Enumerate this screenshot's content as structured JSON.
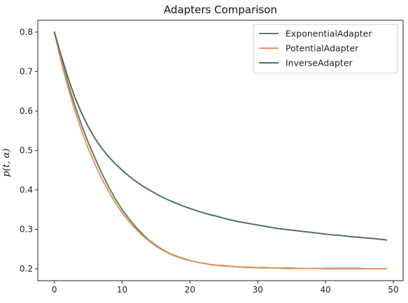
{
  "chart_data": {
    "type": "line",
    "title": "Adapters Comparison",
    "xlabel": "",
    "ylabel": "p(t, α)",
    "xlim": [
      -2.45,
      51.45
    ],
    "ylim": [
      0.17,
      0.83
    ],
    "xticks": [
      0,
      10,
      20,
      30,
      40,
      50
    ],
    "yticks": [
      0.2,
      0.3,
      0.4,
      0.5,
      0.6,
      0.7,
      0.8
    ],
    "ytick_labels": [
      "0.2",
      "0.3",
      "0.4",
      "0.5",
      "0.6",
      "0.7",
      "0.8"
    ],
    "grid": false,
    "legend_position": "top-right",
    "x": [
      0,
      1,
      2,
      3,
      4,
      5,
      6,
      7,
      8,
      9,
      10,
      11,
      12,
      13,
      14,
      15,
      16,
      17,
      18,
      19,
      20,
      21,
      22,
      23,
      24,
      25,
      26,
      27,
      28,
      29,
      30,
      31,
      32,
      33,
      34,
      35,
      36,
      37,
      38,
      39,
      40,
      41,
      42,
      43,
      44,
      45,
      46,
      47,
      48,
      49
    ],
    "series": [
      {
        "name": "ExponentialAdapter",
        "color": "#5f7f6f",
        "values": [
          0.8,
          0.73,
          0.67,
          0.615,
          0.565,
          0.52,
          0.48,
          0.442,
          0.408,
          0.377,
          0.35,
          0.327,
          0.306,
          0.288,
          0.272,
          0.259,
          0.248,
          0.239,
          0.232,
          0.226,
          0.221,
          0.217,
          0.214,
          0.211,
          0.209,
          0.208,
          0.206,
          0.205,
          0.204,
          0.204,
          0.203,
          0.203,
          0.202,
          0.202,
          0.202,
          0.202,
          0.201,
          0.201,
          0.201,
          0.201,
          0.201,
          0.201,
          0.201,
          0.201,
          0.201,
          0.201,
          0.2,
          0.2,
          0.2,
          0.2
        ]
      },
      {
        "name": "PotentialAdapter",
        "color": "#e8945a",
        "values": [
          0.8,
          0.725,
          0.66,
          0.602,
          0.55,
          0.505,
          0.465,
          0.428,
          0.396,
          0.367,
          0.342,
          0.32,
          0.301,
          0.284,
          0.27,
          0.257,
          0.247,
          0.238,
          0.231,
          0.225,
          0.221,
          0.217,
          0.214,
          0.211,
          0.209,
          0.207,
          0.206,
          0.205,
          0.204,
          0.203,
          0.203,
          0.202,
          0.202,
          0.202,
          0.201,
          0.201,
          0.201,
          0.201,
          0.201,
          0.201,
          0.2,
          0.2,
          0.2,
          0.2,
          0.2,
          0.2,
          0.2,
          0.2,
          0.2,
          0.2
        ]
      },
      {
        "name": "InverseAdapter",
        "color": "#4f7060",
        "values": [
          0.8,
          0.74,
          0.685,
          0.635,
          0.595,
          0.56,
          0.53,
          0.505,
          0.484,
          0.466,
          0.45,
          0.435,
          0.422,
          0.41,
          0.4,
          0.39,
          0.381,
          0.373,
          0.366,
          0.359,
          0.353,
          0.347,
          0.342,
          0.337,
          0.333,
          0.328,
          0.324,
          0.32,
          0.317,
          0.314,
          0.311,
          0.308,
          0.305,
          0.302,
          0.3,
          0.298,
          0.296,
          0.294,
          0.292,
          0.29,
          0.288,
          0.286,
          0.285,
          0.283,
          0.281,
          0.28,
          0.278,
          0.277,
          0.275,
          0.273
        ]
      }
    ]
  }
}
